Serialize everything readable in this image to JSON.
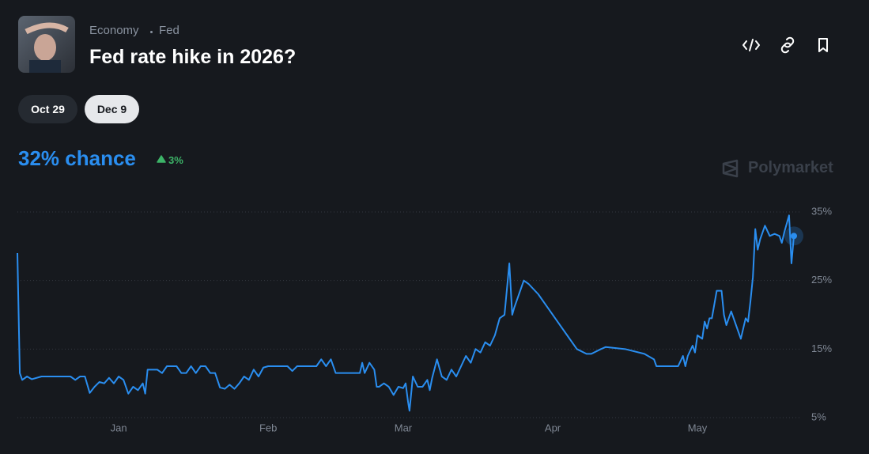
{
  "header": {
    "breadcrumb": [
      "Economy",
      "Fed"
    ],
    "title": "Fed rate hike in 2026?"
  },
  "tabs": [
    "Oct 29",
    "Dec 9"
  ],
  "summary": {
    "headline": "32% chance",
    "change": "3%"
  },
  "watermark": "Polymarket",
  "chart_data": {
    "type": "line",
    "color": "#2a8ef0",
    "grid": true,
    "xlim": [
      0,
      161
    ],
    "ylim": [
      5,
      35
    ],
    "xticks": [
      {
        "value": 21,
        "label": "Jan"
      },
      {
        "value": 52,
        "label": "Feb"
      },
      {
        "value": 80,
        "label": "Mar"
      },
      {
        "value": 111,
        "label": "Apr"
      },
      {
        "value": 141,
        "label": "May"
      }
    ],
    "yticks": [
      {
        "value": 5,
        "label": "5%"
      },
      {
        "value": 15,
        "label": "15%"
      },
      {
        "value": 25,
        "label": "25%"
      },
      {
        "value": 35,
        "label": "35%"
      }
    ],
    "x": [
      0,
      0.5,
      1,
      2,
      3,
      5,
      8,
      11,
      12,
      13,
      14,
      15,
      16,
      17,
      18,
      19,
      20,
      21,
      22,
      23,
      24,
      25,
      26,
      26.5,
      27,
      29,
      30,
      31,
      33,
      34,
      35,
      36,
      37,
      38,
      39,
      40,
      41,
      42,
      43,
      44,
      45,
      46,
      47,
      48,
      49,
      50,
      51,
      52,
      54,
      56,
      57,
      58,
      60,
      62,
      63,
      64,
      65,
      66,
      68,
      70,
      71,
      71.5,
      72,
      73,
      74,
      74.5,
      75,
      76,
      77,
      78,
      79,
      80,
      80.5,
      81,
      81.3,
      82,
      83,
      84,
      85,
      85.5,
      86,
      87,
      88,
      89,
      90,
      91,
      92,
      93,
      94,
      95,
      96,
      97,
      98,
      99,
      100,
      101,
      102,
      102.6,
      103,
      104,
      105,
      106,
      108,
      110,
      112,
      114,
      116,
      118,
      119,
      121,
      122,
      126,
      130,
      132,
      132.5,
      134,
      136,
      137,
      138,
      138.5,
      139,
      140,
      140.5,
      141,
      142,
      142.5,
      143,
      143.5,
      144,
      145,
      146,
      146.5,
      147,
      148,
      149,
      150,
      151,
      151.5,
      152,
      152.5,
      153,
      153.5,
      154,
      155,
      156,
      157,
      158,
      158.5,
      159,
      160,
      160.5,
      161
    ],
    "values": [
      29,
      11.5,
      10.5,
      11,
      10.6,
      11,
      11,
      11,
      10.5,
      11,
      11,
      8.6,
      9.5,
      10.2,
      10,
      10.8,
      10,
      11,
      10.5,
      8.5,
      9.5,
      9,
      10,
      8.5,
      12,
      12,
      11.5,
      12.5,
      12.5,
      11.5,
      11.5,
      12.5,
      11.5,
      12.5,
      12.5,
      11.5,
      11.5,
      9.4,
      9.2,
      9.8,
      9.2,
      10,
      11,
      10.5,
      12,
      11,
      12.3,
      12.5,
      12.5,
      12.5,
      11.8,
      12.5,
      12.5,
      12.5,
      13.5,
      12.5,
      13.5,
      11.5,
      11.5,
      11.5,
      11.5,
      13,
      11.5,
      13,
      12,
      9.5,
      9.5,
      10,
      9.5,
      8.3,
      9.5,
      9.3,
      10,
      7.3,
      6,
      11,
      9.5,
      9.5,
      10.5,
      9,
      10.8,
      13.5,
      11,
      10.5,
      12,
      11,
      12.5,
      14,
      13,
      15,
      14.5,
      16,
      15.5,
      17,
      19.5,
      20,
      27.5,
      20,
      21,
      23,
      25,
      24.5,
      23,
      21,
      19,
      17,
      15,
      14.3,
      14.3,
      15,
      15.3,
      15,
      14.3,
      13.5,
      12.5,
      12.5,
      12.5,
      12.5,
      14,
      12.5,
      14,
      15.5,
      14.5,
      17,
      16.5,
      19,
      18,
      19.5,
      19.5,
      23.5,
      23.5,
      20,
      18.5,
      20.5,
      18.5,
      16.5,
      19.5,
      19,
      22,
      25.5,
      32.5,
      29.5,
      31,
      33,
      31.5,
      31.8,
      31.5,
      30.5,
      32,
      34.5,
      27.5,
      31.5
    ]
  }
}
